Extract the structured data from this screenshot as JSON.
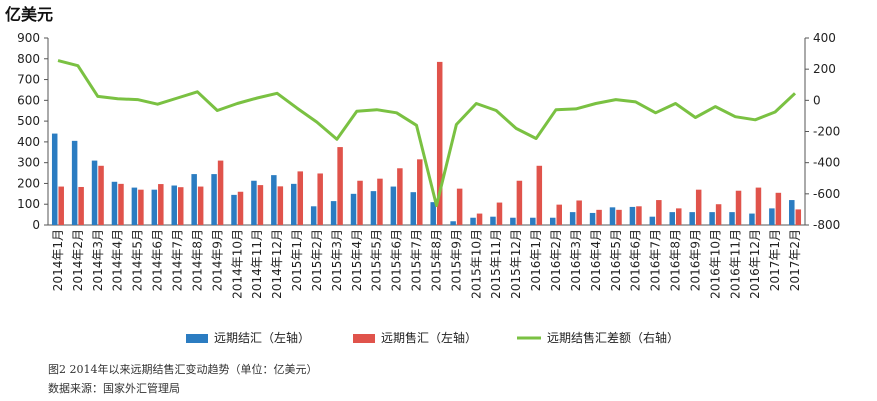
{
  "unit_label": "亿美元",
  "caption": "图2   2014年以来远期结售汇变动趋势（单位：亿美元）",
  "source": "数据来源：国家外汇管理局",
  "chart_data": {
    "type": "bar+line",
    "categories": [
      "2014年1月",
      "2014年2月",
      "2014年3月",
      "2014年4月",
      "2014年5月",
      "2014年6月",
      "2014年7月",
      "2014年8月",
      "2014年9月",
      "2014年10月",
      "2014年11月",
      "2014年12月",
      "2015年1月",
      "2015年2月",
      "2015年3月",
      "2015年4月",
      "2015年5月",
      "2015年6月",
      "2015年7月",
      "2015年8月",
      "2015年9月",
      "2015年10月",
      "2015年11月",
      "2015年12月",
      "2016年1月",
      "2016年2月",
      "2016年3月",
      "2016年4月",
      "2016年5月",
      "2016年6月",
      "2016年7月",
      "2016年8月",
      "2016年9月",
      "2016年10月",
      "2016年11月",
      "2016年12月",
      "2017年1月",
      "2017年2月"
    ],
    "left_axis": {
      "min": 0,
      "max": 900,
      "ticks": [
        "0",
        "100",
        "200",
        "300",
        "400",
        "500",
        "600",
        "700",
        "800",
        "900"
      ]
    },
    "right_axis": {
      "min": -800,
      "max": 400,
      "ticks": [
        "-800",
        "-600",
        "-400",
        "-200",
        "0",
        "200",
        "400"
      ]
    },
    "series": [
      {
        "name": "远期结汇（左轴）",
        "type": "bar",
        "axis": "left",
        "color": "#2b7cc1",
        "values": [
          440,
          405,
          310,
          208,
          180,
          170,
          190,
          245,
          245,
          145,
          213,
          240,
          198,
          90,
          115,
          150,
          163,
          185,
          158,
          110,
          18,
          35,
          40,
          35,
          35,
          35,
          62,
          58,
          85,
          87,
          40,
          62,
          62,
          62,
          62,
          55,
          80,
          120
        ]
      },
      {
        "name": "远期售汇（左轴）",
        "type": "bar",
        "axis": "left",
        "color": "#e0534b",
        "values": [
          185,
          183,
          285,
          198,
          170,
          197,
          182,
          185,
          310,
          160,
          192,
          186,
          258,
          248,
          375,
          213,
          223,
          273,
          316,
          785,
          175,
          55,
          108,
          213,
          285,
          98,
          118,
          73,
          73,
          90,
          120,
          80,
          170,
          100,
          165,
          180,
          155,
          75
        ]
      },
      {
        "name": "远期结售汇差额（右轴）",
        "type": "line",
        "axis": "right",
        "color": "#7ac142",
        "values": [
          255,
          222,
          25,
          10,
          5,
          -25,
          15,
          55,
          -65,
          -20,
          15,
          45,
          -50,
          -140,
          -250,
          -70,
          -60,
          -80,
          -160,
          -675,
          -155,
          -20,
          -65,
          -180,
          -245,
          -60,
          -55,
          -20,
          5,
          -10,
          -80,
          -20,
          -110,
          -40,
          -105,
          -125,
          -75,
          45
        ]
      }
    ],
    "legend_position": "bottom",
    "grid": false
  }
}
